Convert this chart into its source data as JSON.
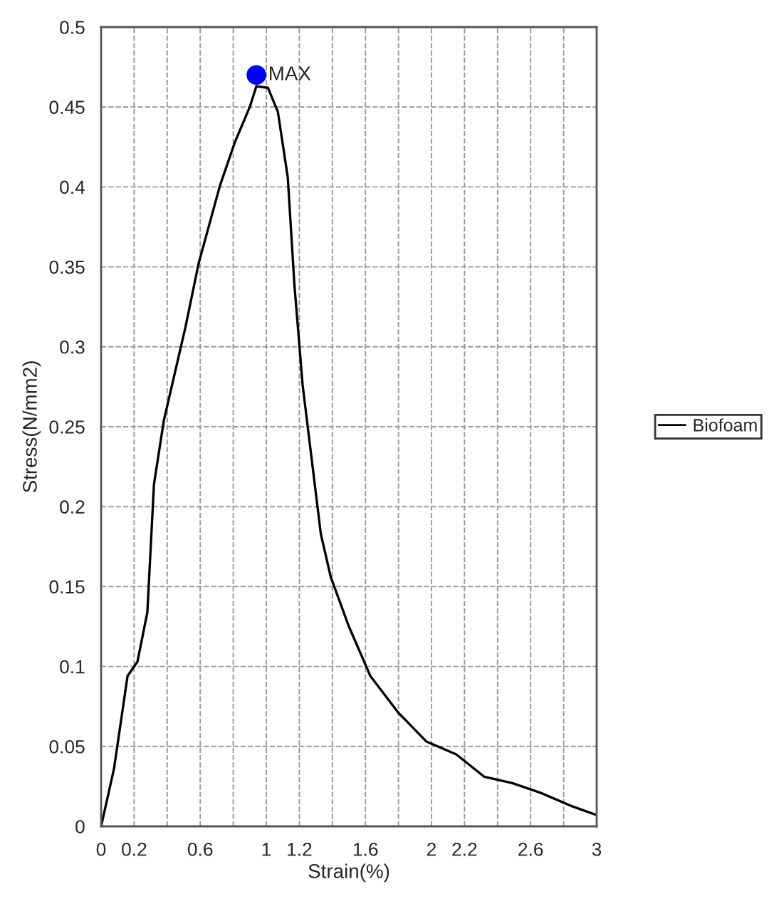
{
  "chart_data": {
    "type": "line",
    "xlabel": "Strain(%)",
    "ylabel": "Stress(N/mm2)",
    "series": [
      {
        "name": "Biofoam",
        "color": "#000000",
        "x": [
          0,
          0.078,
          0.16,
          0.22,
          0.28,
          0.32,
          0.38,
          0.51,
          0.59,
          0.72,
          0.81,
          0.9,
          0.94,
          1.01,
          1.07,
          1.13,
          1.17,
          1.22,
          1.33,
          1.39,
          1.5,
          1.63,
          1.8,
          1.97,
          2.15,
          2.32,
          2.49,
          2.66,
          2.84,
          3.0
        ],
        "values": [
          0,
          0.036,
          0.094,
          0.103,
          0.134,
          0.214,
          0.254,
          0.312,
          0.352,
          0.401,
          0.428,
          0.45,
          0.463,
          0.462,
          0.447,
          0.406,
          0.339,
          0.276,
          0.183,
          0.156,
          0.125,
          0.094,
          0.071,
          0.053,
          0.045,
          0.031,
          0.027,
          0.021,
          0.013,
          0.007
        ]
      },
      {
        "type": "scatter",
        "color": "#0000ff",
        "x": [
          0.94
        ],
        "values": [
          0.47
        ]
      }
    ],
    "annotations": [
      {
        "text": "MAX",
        "x": 0.94,
        "y": 0.47
      }
    ],
    "xlim": [
      0,
      3
    ],
    "ylim": [
      0,
      0.5
    ],
    "xticks": [
      0,
      0.2,
      {
        "value": 0.4,
        "label": null
      },
      0.6,
      {
        "value": 0.8,
        "label": null
      },
      1,
      1.2,
      {
        "value": 1.4,
        "label": null
      },
      1.6,
      {
        "value": 1.8,
        "label": null
      },
      2,
      2.2,
      {
        "value": 2.4,
        "label": null
      },
      2.6,
      {
        "value": 2.8,
        "label": null
      },
      3
    ],
    "yticks": [
      0,
      0.05,
      0.1,
      0.15,
      0.2,
      0.25,
      0.3,
      0.35,
      0.4,
      0.45,
      0.5
    ],
    "grid": true,
    "legend": "right",
    "line_style": "solid"
  }
}
